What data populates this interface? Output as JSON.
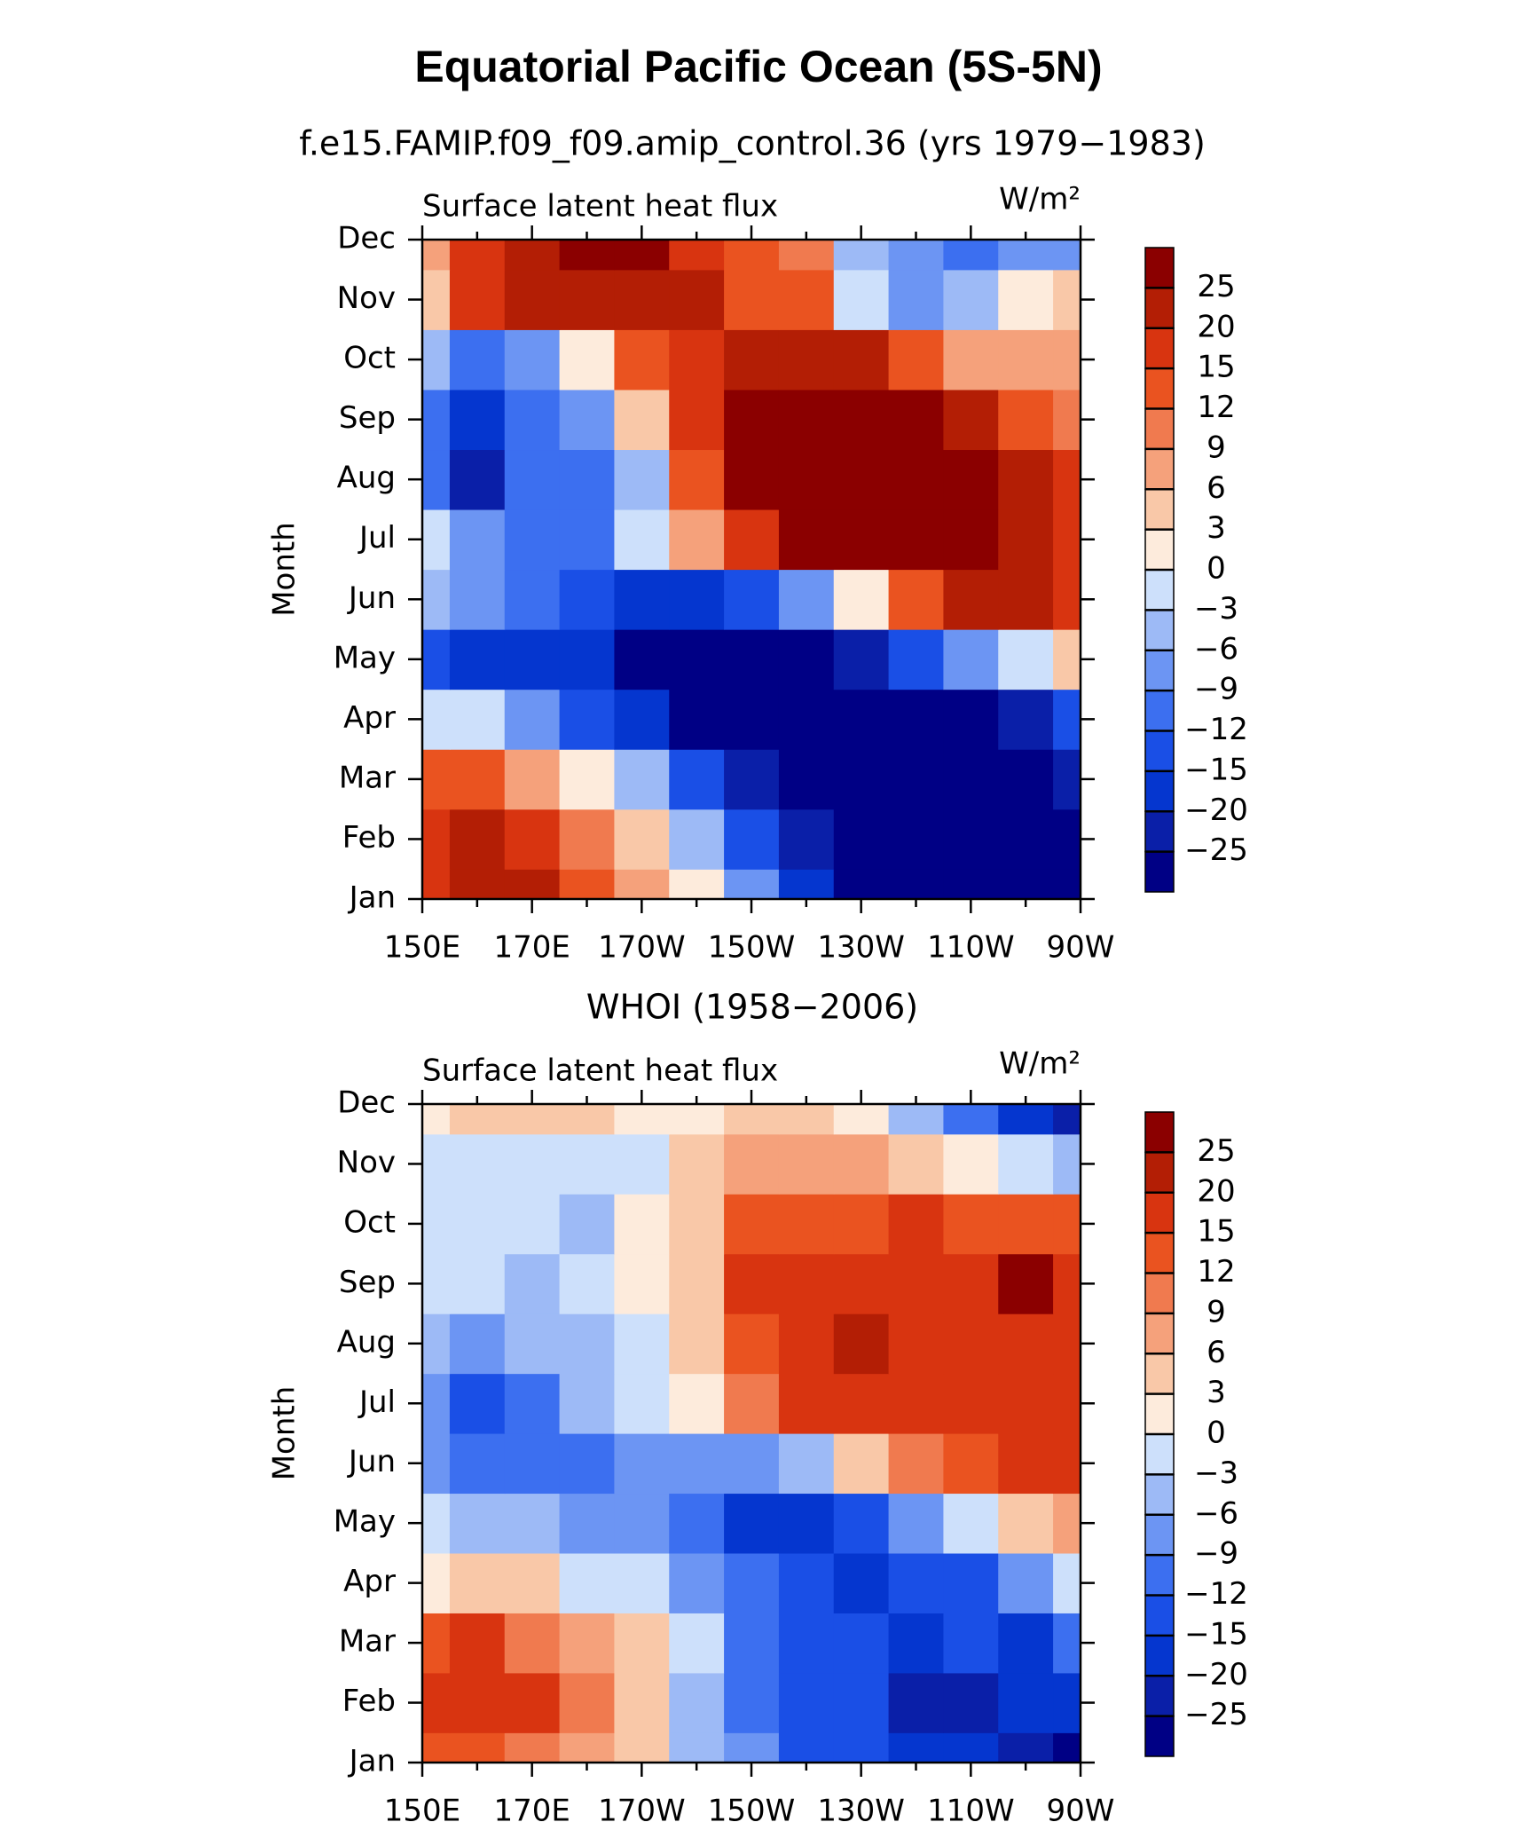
{
  "chart_data": [
    {
      "type": "contour",
      "title": "Equatorial Pacific Ocean (5S-5N)",
      "subtitle": "f.e15.FAMIP.f09_f09.amip_control.36 (yrs 1979−1983)",
      "left_label": "Surface latent heat flux",
      "right_label": "W/m²",
      "ylabel": "Month",
      "categories": [
        "Jan",
        "Feb",
        "Mar",
        "Apr",
        "May",
        "Jun",
        "Jul",
        "Aug",
        "Sep",
        "Oct",
        "Nov",
        "Dec"
      ],
      "x": [
        150,
        160,
        170,
        180,
        190,
        200,
        210,
        220,
        230,
        240,
        250,
        260,
        270
      ],
      "xlim": [
        150,
        270
      ],
      "xticks": [
        {
          "value": 150,
          "label": "150E"
        },
        {
          "value": 170,
          "label": "170E"
        },
        {
          "value": 190,
          "label": "170W"
        },
        {
          "value": 210,
          "label": "150W"
        },
        {
          "value": 230,
          "label": "130W"
        },
        {
          "value": 250,
          "label": "110W"
        },
        {
          "value": 270,
          "label": "90W"
        }
      ],
      "xminor": [
        160,
        180,
        200,
        220,
        240,
        260
      ],
      "levels": [
        {
          "value": -25,
          "label": "−25"
        },
        {
          "value": -20,
          "label": "−20"
        },
        {
          "value": -15,
          "label": "−15"
        },
        {
          "value": -12,
          "label": "−12"
        },
        {
          "value": -9,
          "label": "−9"
        },
        {
          "value": -6,
          "label": "−6"
        },
        {
          "value": -3,
          "label": "−3"
        },
        0,
        3,
        6,
        9,
        12,
        15,
        20,
        25
      ],
      "colors": [
        "#000085",
        "#0a1fa8",
        "#0536cf",
        "#1a4fe6",
        "#3c6ff0",
        "#6c95f3",
        "#9dbaf6",
        "#cde0fb",
        "#fdebdc",
        "#f9c8a8",
        "#f5a17b",
        "#f07a4f",
        "#ea5320",
        "#d83410",
        "#b31e05",
        "#8b0000"
      ],
      "z": [
        [
          15,
          22,
          20,
          12,
          6,
          0,
          -9,
          -20,
          -26,
          -28,
          -28,
          -28,
          -28
        ],
        [
          18,
          22,
          15,
          9,
          3,
          -6,
          -15,
          -22,
          -27,
          -28,
          -28,
          -28,
          -28
        ],
        [
          12,
          12,
          6,
          0,
          -6,
          -15,
          -22,
          -27,
          -28,
          -28,
          -28,
          -26,
          -25
        ],
        [
          -3,
          -3,
          -9,
          -15,
          -20,
          -26,
          -28,
          -28,
          -28,
          -28,
          -27,
          -22,
          -14
        ],
        [
          -15,
          -18,
          -20,
          -18,
          -27,
          -28,
          -28,
          -27,
          -22,
          -15,
          -9,
          -3,
          3
        ],
        [
          -6,
          -9,
          -12,
          -15,
          -20,
          -20,
          -15,
          -9,
          0,
          12,
          20,
          22,
          15
        ],
        [
          -3,
          -9,
          -12,
          -12,
          -3,
          6,
          15,
          26,
          27,
          27,
          27,
          22,
          15
        ],
        [
          -12,
          -22,
          -12,
          -12,
          -6,
          12,
          26,
          27,
          27,
          27,
          27,
          22,
          15
        ],
        [
          -12,
          -18,
          -12,
          -9,
          3,
          15,
          26,
          26,
          27,
          27,
          20,
          12,
          10
        ],
        [
          -6,
          -12,
          -9,
          0,
          12,
          15,
          20,
          22,
          20,
          12,
          6,
          6,
          6
        ],
        [
          3,
          15,
          20,
          20,
          22,
          22,
          12,
          12,
          -3,
          -9,
          -6,
          0,
          3
        ],
        [
          6,
          15,
          22,
          26,
          26,
          15,
          12,
          9,
          -6,
          -9,
          -12,
          -9,
          -9
        ]
      ]
    },
    {
      "type": "contour",
      "subtitle": "WHOI (1958−2006)",
      "left_label": "Surface latent heat flux",
      "right_label": "W/m²",
      "ylabel": "Month",
      "categories": [
        "Jan",
        "Feb",
        "Mar",
        "Apr",
        "May",
        "Jun",
        "Jul",
        "Aug",
        "Sep",
        "Oct",
        "Nov",
        "Dec"
      ],
      "x": [
        150,
        160,
        170,
        180,
        190,
        200,
        210,
        220,
        230,
        240,
        250,
        260,
        270
      ],
      "xlim": [
        150,
        270
      ],
      "xticks": [
        {
          "value": 150,
          "label": "150E"
        },
        {
          "value": 170,
          "label": "170E"
        },
        {
          "value": 190,
          "label": "170W"
        },
        {
          "value": 210,
          "label": "150W"
        },
        {
          "value": 230,
          "label": "130W"
        },
        {
          "value": 250,
          "label": "110W"
        },
        {
          "value": 270,
          "label": "90W"
        }
      ],
      "xminor": [
        160,
        180,
        200,
        220,
        240,
        260
      ],
      "levels": [
        {
          "value": -25,
          "label": "−25"
        },
        {
          "value": -20,
          "label": "−20"
        },
        {
          "value": -15,
          "label": "−15"
        },
        {
          "value": -12,
          "label": "−12"
        },
        {
          "value": -9,
          "label": "−9"
        },
        {
          "value": -6,
          "label": "−6"
        },
        {
          "value": -3,
          "label": "−3"
        },
        0,
        3,
        6,
        9,
        12,
        15,
        20,
        25
      ],
      "colors": [
        "#000085",
        "#0a1fa8",
        "#0536cf",
        "#1a4fe6",
        "#3c6ff0",
        "#6c95f3",
        "#9dbaf6",
        "#cde0fb",
        "#fdebdc",
        "#f9c8a8",
        "#f5a17b",
        "#f07a4f",
        "#ea5320",
        "#d83410",
        "#b31e05",
        "#8b0000"
      ],
      "z": [
        [
          12,
          12,
          9,
          6,
          3,
          -6,
          -9,
          -15,
          -15,
          -18,
          -20,
          -25,
          -28
        ],
        [
          15,
          17,
          16,
          9,
          3,
          -6,
          -12,
          -15,
          -15,
          -22,
          -22,
          -20,
          -20
        ],
        [
          12,
          15,
          9,
          6,
          3,
          -3,
          -12,
          -15,
          -15,
          -18,
          -15,
          -18,
          -12
        ],
        [
          0,
          3,
          3,
          -3,
          -3,
          -9,
          -12,
          -15,
          -18,
          -15,
          -15,
          -9,
          -3
        ],
        [
          -3,
          -6,
          -6,
          -9,
          -9,
          -12,
          -16,
          -18,
          -15,
          -9,
          -3,
          3,
          6
        ],
        [
          -9,
          -12,
          -12,
          -12,
          -9,
          -9,
          -9,
          -6,
          3,
          9,
          12,
          15,
          15
        ],
        [
          -9,
          -13,
          -12,
          -6,
          -3,
          0,
          9,
          15,
          15,
          15,
          17,
          17,
          15
        ],
        [
          -6,
          -9,
          -6,
          -6,
          -3,
          3,
          12,
          17,
          20,
          15,
          17,
          17,
          15
        ],
        [
          -3,
          -3,
          -6,
          -3,
          0,
          3,
          15,
          15,
          15,
          15,
          17,
          26,
          15
        ],
        [
          -3,
          -3,
          -3,
          -6,
          0,
          3,
          12,
          12,
          12,
          15,
          12,
          12,
          12
        ],
        [
          -3,
          -3,
          -3,
          -3,
          -3,
          3,
          6,
          6,
          6,
          3,
          0,
          -3,
          -6
        ],
        [
          0,
          3,
          3,
          3,
          0,
          0,
          3,
          3,
          0,
          -6,
          -12,
          -18,
          -22
        ]
      ]
    }
  ]
}
